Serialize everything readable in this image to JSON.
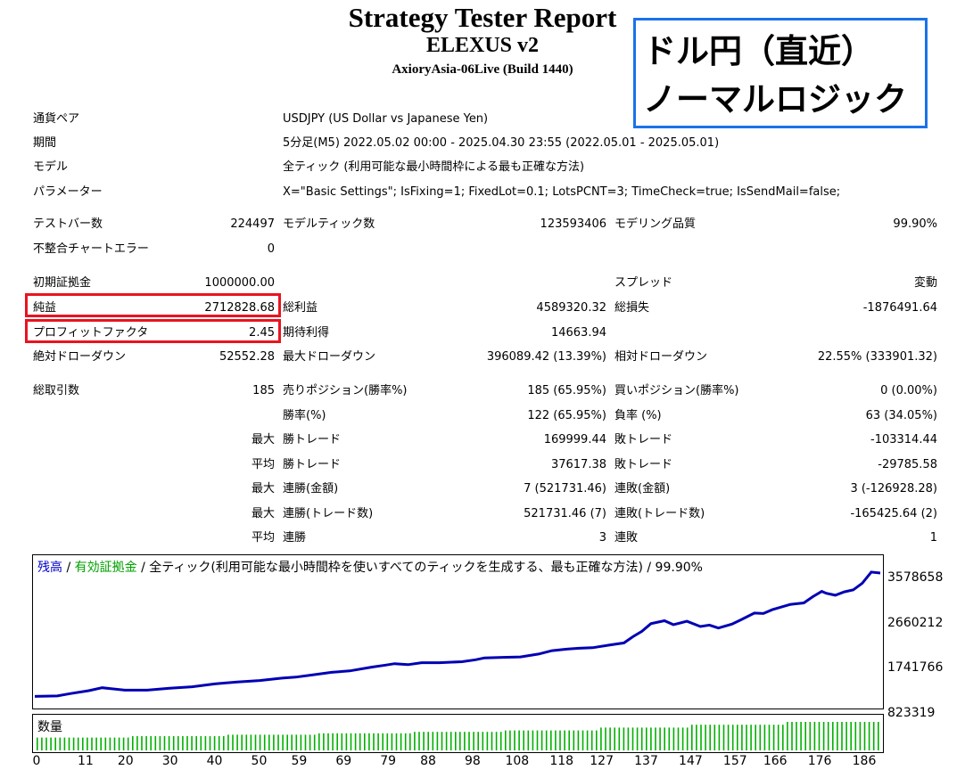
{
  "header": {
    "title": "Strategy Tester Report",
    "ea_name": "ELEXUS v2",
    "server": "AxioryAsia-06Live (Build 1440)"
  },
  "overlay": {
    "line1": "ドル円（直近）",
    "line2": "ノーマルロジック"
  },
  "info": [
    {
      "label": "通貨ペア",
      "value": "USDJPY (US Dollar vs Japanese Yen)"
    },
    {
      "label": "期間",
      "value": "5分足(M5) 2022.05.02 00:00 - 2025.04.30 23:55 (2022.05.01 - 2025.05.01)"
    },
    {
      "label": "モデル",
      "value": "全ティック (利用可能な最小時間枠による最も正確な方法)"
    },
    {
      "label": "パラメーター",
      "value": "X=\"Basic Settings\"; IsFixing=1; FixedLot=0.1; LotsPCNT=3; TimeCheck=true; IsSendMail=false;"
    }
  ],
  "stats": {
    "bars_label": "テストバー数",
    "bars": "224497",
    "ticks_label": "モデルティック数",
    "ticks": "123593406",
    "quality_label": "モデリング品質",
    "quality": "99.90%",
    "errors_label": "不整合チャートエラー",
    "errors": "0",
    "deposit_label": "初期証拠金",
    "deposit": "1000000.00",
    "spread_label": "スプレッド",
    "spread": "変動",
    "net_label": "純益",
    "net": "2712828.68",
    "gross_profit_label": "総利益",
    "gross_profit": "4589320.32",
    "gross_loss_label": "総損失",
    "gross_loss": "-1876491.64",
    "pf_label": "プロフィットファクタ",
    "pf": "2.45",
    "expected_label": "期待利得",
    "expected": "14663.94",
    "abs_dd_label": "絶対ドローダウン",
    "abs_dd": "52552.28",
    "max_dd_label": "最大ドローダウン",
    "max_dd": "396089.42 (13.39%)",
    "rel_dd_label": "相対ドローダウン",
    "rel_dd": "22.55% (333901.32)"
  },
  "trades": {
    "total_label": "総取引数",
    "total": "185",
    "short_label": "売りポジション(勝率%)",
    "short": "185 (65.95%)",
    "long_label": "買いポジション(勝率%)",
    "long": "0 (0.00%)",
    "winrate_label": "勝率(%)",
    "winrate": "122 (65.95%)",
    "lossrate_label": "負率 (%)",
    "lossrate": "63 (34.05%)",
    "max": "最大",
    "avg": "平均",
    "win_trade_label": "勝トレード",
    "loss_trade_label": "敗トレード",
    "max_win": "169999.44",
    "max_loss": "-103314.44",
    "avg_win": "37617.38",
    "avg_loss": "-29785.58",
    "cons_win_amt_label": "連勝(金額)",
    "cons_win_amt": "7 (521731.46)",
    "cons_loss_amt_label": "連敗(金額)",
    "cons_loss_amt": "3 (-126928.28)",
    "cons_win_cnt_label": "連勝(トレード数)",
    "cons_win_cnt": "521731.46 (7)",
    "cons_loss_cnt_label": "連敗(トレード数)",
    "cons_loss_cnt": "-165425.64 (2)",
    "avg_cons_win_label": "連勝",
    "avg_cons_win": "3",
    "avg_cons_loss_label": "連敗",
    "avg_cons_loss": "1"
  },
  "chart_legend": {
    "balance": "残高",
    "sep1": " / ",
    "equity": "有効証拠金",
    "rest": " / 全ティック(利用可能な最小時間枠を使いすべてのティックを生成する、最も正確な方法) / 99.90%",
    "balance_color": "#0000c8",
    "equity_color": "#00a000"
  },
  "volume_label": "数量",
  "chart_data": {
    "type": "line",
    "ylim": [
      823319,
      3578658
    ],
    "y_ticks": [
      "3578658",
      "2660212",
      "1741766",
      "823319"
    ],
    "x_ticks": [
      "0",
      "11",
      "20",
      "30",
      "40",
      "50",
      "59",
      "69",
      "79",
      "88",
      "98",
      "108",
      "118",
      "127",
      "137",
      "147",
      "157",
      "166",
      "176",
      "186"
    ],
    "series": [
      {
        "values": [
          [
            0,
            1000000
          ],
          [
            5,
            1010000
          ],
          [
            8,
            1060000
          ],
          [
            12,
            1120000
          ],
          [
            15,
            1180000
          ],
          [
            20,
            1130000
          ],
          [
            25,
            1130000
          ],
          [
            30,
            1170000
          ],
          [
            35,
            1200000
          ],
          [
            40,
            1260000
          ],
          [
            45,
            1300000
          ],
          [
            50,
            1330000
          ],
          [
            55,
            1380000
          ],
          [
            58,
            1400000
          ],
          [
            62,
            1450000
          ],
          [
            66,
            1500000
          ],
          [
            70,
            1530000
          ],
          [
            75,
            1610000
          ],
          [
            78,
            1650000
          ],
          [
            80,
            1680000
          ],
          [
            83,
            1660000
          ],
          [
            86,
            1700000
          ],
          [
            90,
            1700000
          ],
          [
            95,
            1720000
          ],
          [
            98,
            1760000
          ],
          [
            100,
            1800000
          ],
          [
            104,
            1810000
          ],
          [
            108,
            1820000
          ],
          [
            112,
            1880000
          ],
          [
            115,
            1950000
          ],
          [
            118,
            1980000
          ],
          [
            121,
            2000000
          ],
          [
            124,
            2010000
          ],
          [
            128,
            2070000
          ],
          [
            131,
            2110000
          ],
          [
            133,
            2240000
          ],
          [
            135,
            2350000
          ],
          [
            137,
            2510000
          ],
          [
            140,
            2570000
          ],
          [
            142,
            2490000
          ],
          [
            145,
            2560000
          ],
          [
            148,
            2450000
          ],
          [
            150,
            2480000
          ],
          [
            152,
            2420000
          ],
          [
            155,
            2500000
          ],
          [
            157,
            2590000
          ],
          [
            160,
            2730000
          ],
          [
            162,
            2720000
          ],
          [
            164,
            2800000
          ],
          [
            168,
            2910000
          ],
          [
            171,
            2940000
          ],
          [
            173,
            3070000
          ],
          [
            175,
            3180000
          ],
          [
            176,
            3140000
          ],
          [
            178,
            3100000
          ],
          [
            180,
            3170000
          ],
          [
            182,
            3210000
          ],
          [
            184,
            3350000
          ],
          [
            186,
            3580000
          ],
          [
            188,
            3560000
          ]
        ]
      }
    ],
    "volume_values": [
      0.45,
      0.5,
      0.55,
      0.6,
      0.65,
      0.7,
      0.8,
      0.9,
      1.0
    ],
    "volume_color": "#00b000"
  }
}
